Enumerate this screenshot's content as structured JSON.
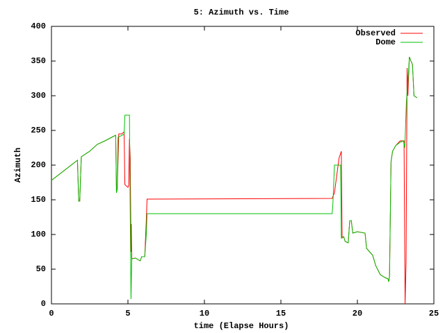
{
  "chart_data": {
    "type": "line",
    "title": "5: Azimuth vs. Time",
    "x_label": "time (Elapse Hours)",
    "y_label": "Azimuth",
    "xlim": [
      0,
      25
    ],
    "ylim": [
      0,
      400
    ],
    "xticks": [
      0,
      5,
      10,
      15,
      20,
      25
    ],
    "yticks": [
      0,
      50,
      100,
      150,
      200,
      250,
      300,
      350,
      400
    ],
    "legend": "top-right",
    "series": [
      {
        "name": "Observed",
        "color": "#ff0000",
        "x": [
          0,
          1.7,
          1.78,
          1.85,
          1.95,
          2.5,
          3,
          3.5,
          4.1,
          4.2,
          4.25,
          4.3,
          4.4,
          4.6,
          4.75,
          4.8,
          4.9,
          5.0,
          5.05,
          5.1,
          5.15,
          5.2,
          5.22,
          5.25,
          5.5,
          5.8,
          5.9,
          6.1,
          6.2,
          6.25,
          18.35,
          18.5,
          18.8,
          18.95,
          19.0,
          19.1,
          19.2,
          19.4,
          19.5,
          19.6,
          19.7,
          20,
          20.5,
          20.6,
          20.8,
          21,
          21.2,
          21.5,
          21.8,
          22,
          22.05,
          22.1,
          22.2,
          22.3,
          22.5,
          22.8,
          23.05,
          23.12,
          23.18,
          23.25,
          23.3,
          23.4,
          23.5,
          23.6,
          23.7,
          23.9
        ],
        "values": [
          178,
          207,
          148,
          148,
          212,
          220,
          230,
          235,
          242,
          243,
          160,
          165,
          245,
          245,
          248,
          172,
          170,
          168,
          170,
          238,
          210,
          75,
          115,
          65,
          66,
          62,
          68,
          68,
          120,
          151,
          152,
          160,
          210,
          220,
          95,
          97,
          90,
          88,
          120,
          120,
          102,
          104,
          102,
          80,
          75,
          70,
          55,
          42,
          38,
          36,
          32,
          40,
          205,
          220,
          228,
          235,
          235,
          0,
          60,
          340,
          300,
          356,
          350,
          345,
          300,
          297
        ]
      },
      {
        "name": "Dome",
        "color": "#00c000",
        "x": [
          0,
          1.7,
          1.78,
          1.85,
          1.95,
          2.5,
          3,
          3.5,
          4.1,
          4.2,
          4.25,
          4.3,
          4.35,
          4.7,
          4.75,
          4.8,
          5.1,
          5.12,
          5.2,
          5.25,
          5.5,
          5.8,
          5.9,
          6.1,
          6.2,
          6.25,
          18.35,
          18.4,
          18.5,
          18.9,
          18.95,
          19.1,
          19.2,
          19.4,
          19.5,
          19.6,
          19.7,
          20,
          20.5,
          20.6,
          20.8,
          21,
          21.2,
          21.5,
          21.8,
          22,
          22.05,
          22.1,
          22.2,
          22.3,
          22.5,
          22.8,
          23,
          23.1,
          23.2,
          23.3,
          23.4,
          23.5,
          23.6,
          23.7,
          23.9
        ],
        "values": [
          178,
          207,
          148,
          148,
          212,
          220,
          230,
          235,
          242,
          243,
          160,
          165,
          240,
          244,
          245,
          272,
          272,
          210,
          7,
          65,
          66,
          62,
          68,
          68,
          100,
          130,
          130,
          145,
          200,
          200,
          95,
          97,
          90,
          88,
          120,
          120,
          102,
          104,
          102,
          80,
          75,
          70,
          55,
          42,
          38,
          36,
          32,
          40,
          205,
          220,
          228,
          233,
          235,
          225,
          290,
          320,
          356,
          350,
          345,
          300,
          297
        ]
      }
    ]
  }
}
